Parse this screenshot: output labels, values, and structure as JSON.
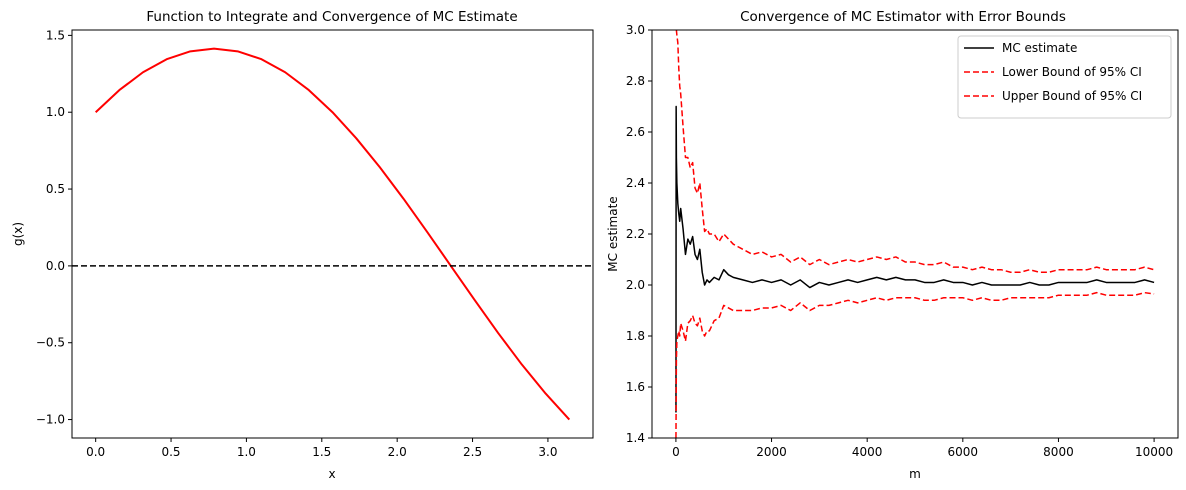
{
  "chart_data": [
    {
      "type": "line",
      "title": "Function to Integrate and Convergence of MC Estimate",
      "xlabel": "x",
      "ylabel": "g(x)",
      "xlim": [
        -0.157,
        3.299
      ],
      "ylim": [
        -1.12,
        1.535
      ],
      "xticks": [
        0.0,
        0.5,
        1.0,
        1.5,
        2.0,
        2.5,
        3.0
      ],
      "xtick_labels": [
        "0.0",
        "0.5",
        "1.0",
        "1.5",
        "2.0",
        "2.5",
        "3.0"
      ],
      "yticks": [
        -1.0,
        -0.5,
        0.0,
        0.5,
        1.0,
        1.5
      ],
      "ytick_labels": [
        "−1.0",
        "−0.5",
        "0.0",
        "0.5",
        "1.0",
        "1.5"
      ],
      "grid": false,
      "series": [
        {
          "color": "#ff0000",
          "style": "solid",
          "x": [
            0.0,
            0.157,
            0.314,
            0.471,
            0.628,
            0.785,
            0.942,
            1.1,
            1.257,
            1.414,
            1.571,
            1.728,
            1.885,
            2.042,
            2.199,
            2.356,
            2.513,
            2.67,
            2.827,
            2.985,
            3.142
          ],
          "y": [
            1.0,
            1.144,
            1.26,
            1.345,
            1.396,
            1.414,
            1.396,
            1.345,
            1.26,
            1.144,
            1.0,
            0.831,
            0.642,
            0.437,
            0.221,
            0.0,
            -0.221,
            -0.437,
            -0.642,
            -0.831,
            -1.0
          ]
        },
        {
          "color": "#000000",
          "style": "dashed",
          "x": [
            -0.157,
            3.299
          ],
          "y": [
            0.0,
            0.0
          ]
        }
      ]
    },
    {
      "type": "line",
      "title": "Convergence of MC Estimator with Error Bounds",
      "xlabel": "m",
      "ylabel": "MC estimate",
      "xlim": [
        -500,
        10500
      ],
      "ylim": [
        1.4,
        3.0
      ],
      "xticks": [
        0,
        2000,
        4000,
        6000,
        8000,
        10000
      ],
      "xtick_labels": [
        "0",
        "2000",
        "4000",
        "6000",
        "8000",
        "10000"
      ],
      "yticks": [
        1.4,
        1.6,
        1.8,
        2.0,
        2.2,
        2.4,
        2.6,
        2.8,
        3.0
      ],
      "ytick_labels": [
        "1.4",
        "1.6",
        "1.8",
        "2.0",
        "2.2",
        "2.4",
        "2.6",
        "2.8",
        "3.0"
      ],
      "grid": false,
      "legend_position": "top-right",
      "series": [
        {
          "name": "MC estimate",
          "color": "#000000",
          "style": "solid",
          "x": [
            1,
            5,
            10,
            20,
            40,
            60,
            80,
            100,
            150,
            200,
            250,
            300,
            350,
            400,
            450,
            500,
            550,
            600,
            650,
            700,
            800,
            900,
            1000,
            1100,
            1200,
            1400,
            1600,
            1800,
            2000,
            2200,
            2400,
            2600,
            2800,
            3000,
            3200,
            3400,
            3600,
            3800,
            4000,
            4200,
            4400,
            4600,
            4800,
            5000,
            5200,
            5400,
            5600,
            5800,
            6000,
            6200,
            6400,
            6600,
            6800,
            7000,
            7200,
            7400,
            7600,
            7800,
            8000,
            8200,
            8400,
            8600,
            8800,
            9000,
            9200,
            9400,
            9600,
            9800,
            10000
          ],
          "y": [
            1.5,
            2.7,
            2.5,
            2.4,
            2.32,
            2.28,
            2.25,
            2.3,
            2.22,
            2.12,
            2.18,
            2.16,
            2.19,
            2.12,
            2.1,
            2.14,
            2.05,
            2.0,
            2.02,
            2.01,
            2.03,
            2.02,
            2.06,
            2.04,
            2.03,
            2.02,
            2.01,
            2.02,
            2.01,
            2.02,
            2.0,
            2.02,
            1.99,
            2.01,
            2.0,
            2.01,
            2.02,
            2.01,
            2.02,
            2.03,
            2.02,
            2.03,
            2.02,
            2.02,
            2.01,
            2.01,
            2.02,
            2.01,
            2.01,
            2.0,
            2.01,
            2.0,
            2.0,
            2.0,
            2.0,
            2.01,
            2.0,
            2.0,
            2.01,
            2.01,
            2.01,
            2.01,
            2.02,
            2.01,
            2.01,
            2.01,
            2.01,
            2.02,
            2.01
          ]
        },
        {
          "name": "Lower Bound of 95% CI",
          "color": "#ff0000",
          "style": "dashed",
          "x": [
            1,
            5,
            10,
            20,
            40,
            60,
            80,
            100,
            150,
            200,
            250,
            300,
            350,
            400,
            450,
            500,
            550,
            600,
            650,
            700,
            800,
            900,
            1000,
            1100,
            1200,
            1400,
            1600,
            1800,
            2000,
            2200,
            2400,
            2600,
            2800,
            3000,
            3200,
            3400,
            3600,
            3800,
            4000,
            4200,
            4400,
            4600,
            4800,
            5000,
            5200,
            5400,
            5600,
            5800,
            6000,
            6200,
            6400,
            6600,
            6800,
            7000,
            7200,
            7400,
            7600,
            7800,
            8000,
            8200,
            8400,
            8600,
            8800,
            9000,
            9200,
            9400,
            9600,
            9800,
            10000
          ],
          "y": [
            1.4,
            1.55,
            1.7,
            1.78,
            1.8,
            1.82,
            1.8,
            1.85,
            1.82,
            1.78,
            1.85,
            1.86,
            1.88,
            1.85,
            1.84,
            1.87,
            1.82,
            1.8,
            1.82,
            1.82,
            1.86,
            1.87,
            1.92,
            1.91,
            1.9,
            1.9,
            1.9,
            1.91,
            1.91,
            1.92,
            1.9,
            1.93,
            1.9,
            1.92,
            1.92,
            1.93,
            1.94,
            1.93,
            1.94,
            1.95,
            1.94,
            1.95,
            1.95,
            1.95,
            1.94,
            1.94,
            1.95,
            1.95,
            1.95,
            1.94,
            1.95,
            1.94,
            1.94,
            1.95,
            1.95,
            1.95,
            1.95,
            1.95,
            1.96,
            1.96,
            1.96,
            1.96,
            1.97,
            1.96,
            1.96,
            1.96,
            1.96,
            1.97,
            1.965
          ]
        },
        {
          "name": "Upper Bound of 95% CI",
          "color": "#ff0000",
          "style": "dashed",
          "x": [
            1,
            5,
            10,
            20,
            40,
            60,
            80,
            100,
            150,
            200,
            250,
            300,
            350,
            400,
            450,
            500,
            550,
            600,
            650,
            700,
            800,
            900,
            1000,
            1100,
            1200,
            1400,
            1600,
            1800,
            2000,
            2200,
            2400,
            2600,
            2800,
            3000,
            3200,
            3400,
            3600,
            3800,
            4000,
            4200,
            4400,
            4600,
            4800,
            5000,
            5200,
            5400,
            5600,
            5800,
            6000,
            6200,
            6400,
            6600,
            6800,
            7000,
            7200,
            7400,
            7600,
            7800,
            8000,
            8200,
            8400,
            8600,
            8800,
            9000,
            9200,
            9400,
            9600,
            9800,
            10000
          ],
          "y": [
            3.0,
            3.0,
            3.0,
            2.98,
            2.95,
            2.85,
            2.78,
            2.75,
            2.62,
            2.5,
            2.5,
            2.46,
            2.48,
            2.38,
            2.36,
            2.4,
            2.3,
            2.21,
            2.22,
            2.2,
            2.2,
            2.17,
            2.2,
            2.18,
            2.16,
            2.14,
            2.12,
            2.13,
            2.11,
            2.12,
            2.09,
            2.11,
            2.08,
            2.1,
            2.08,
            2.09,
            2.1,
            2.09,
            2.1,
            2.11,
            2.1,
            2.11,
            2.09,
            2.09,
            2.08,
            2.08,
            2.09,
            2.07,
            2.07,
            2.06,
            2.07,
            2.06,
            2.06,
            2.05,
            2.05,
            2.06,
            2.05,
            2.05,
            2.06,
            2.06,
            2.06,
            2.06,
            2.07,
            2.06,
            2.06,
            2.06,
            2.06,
            2.07,
            2.06
          ]
        }
      ]
    }
  ]
}
